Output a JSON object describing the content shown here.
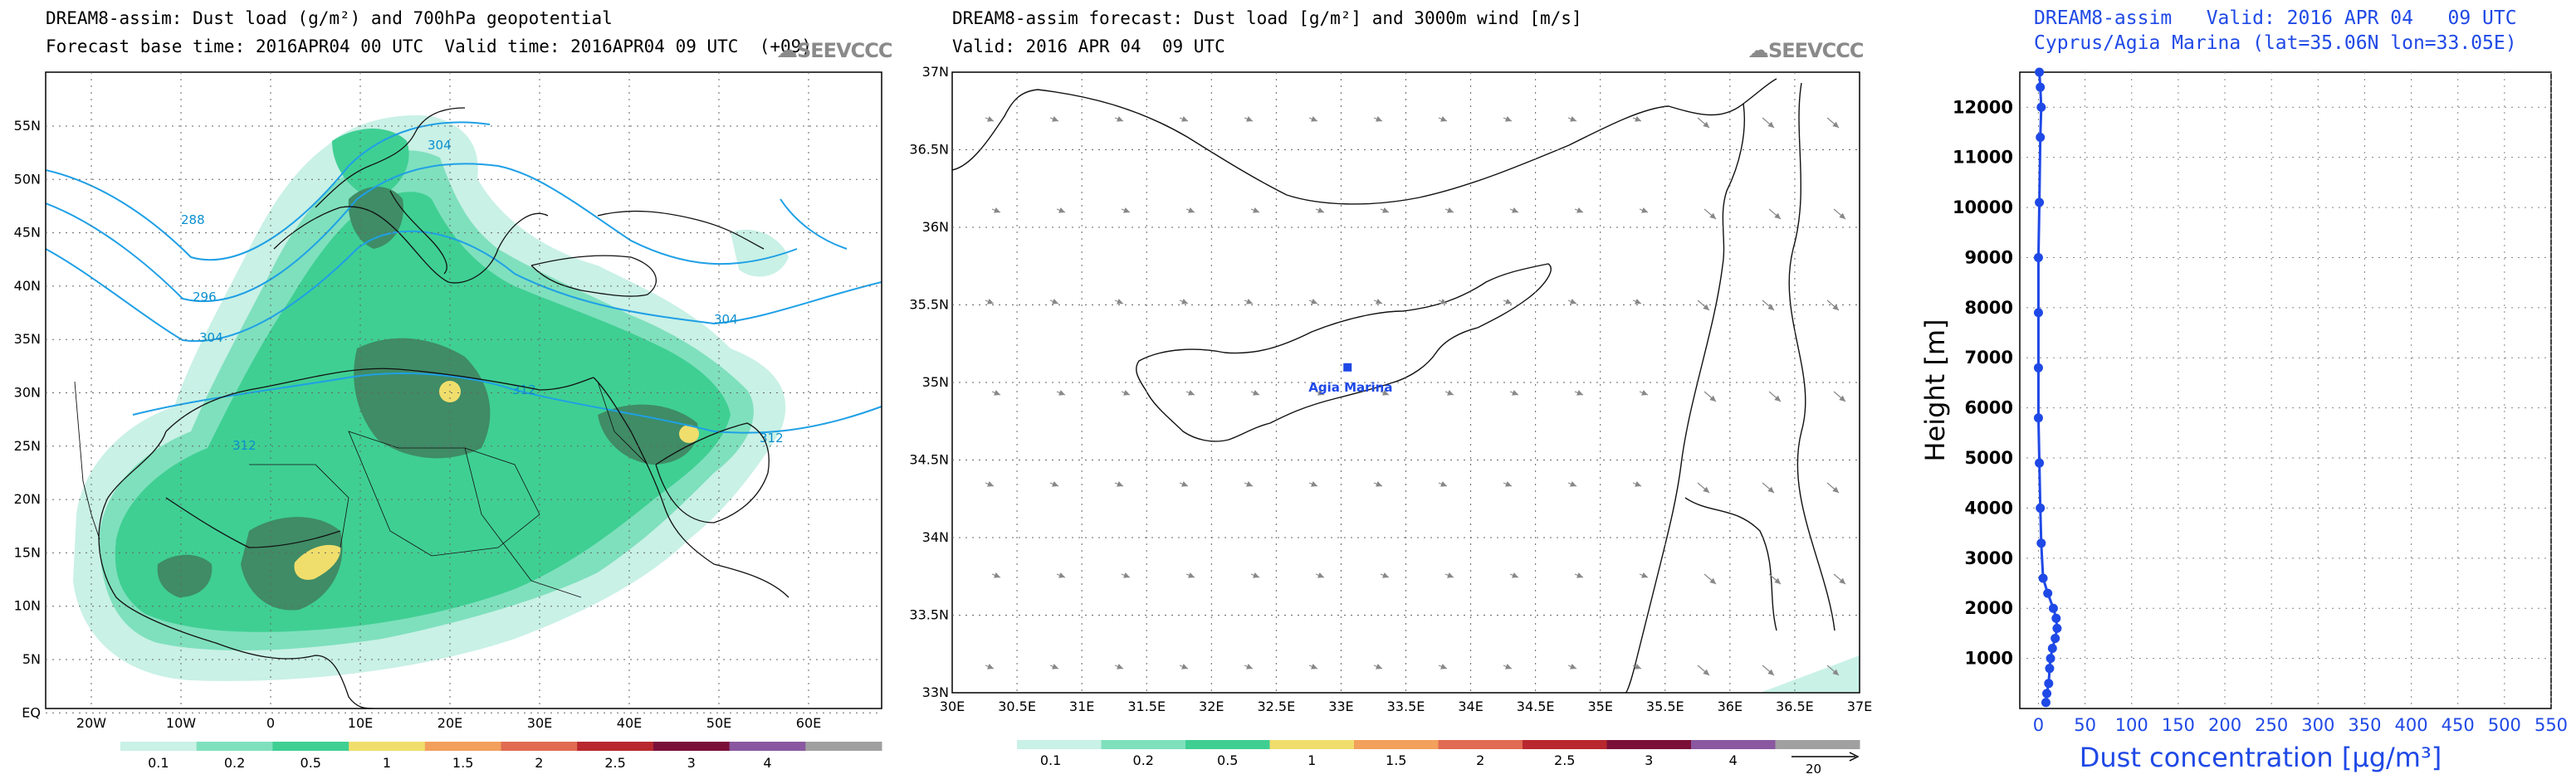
{
  "panel1": {
    "title_line1": "DREAM8-assim: Dust load (g/m²) and 700hPa geopotential",
    "title_line2": "Forecast base time: 2016APR04 00 UTC  Valid time: 2016APR04 09 UTC  (+09)",
    "logo": "SEEVCCC",
    "lon_labels": [
      "20W",
      "10W",
      "0",
      "10E",
      "20E",
      "30E",
      "40E",
      "50E",
      "60E"
    ],
    "lat_labels": [
      "55N",
      "50N",
      "45N",
      "40N",
      "35N",
      "30N",
      "25N",
      "20N",
      "15N",
      "10N",
      "5N",
      "EQ"
    ],
    "contour_labels": [
      "288",
      "296",
      "304",
      "304",
      "304",
      "312",
      "312",
      "312"
    ],
    "colorbar_labels": [
      "0.1",
      "0.2",
      "0.5",
      "1",
      "1.5",
      "2",
      "2.5",
      "3",
      "4"
    ]
  },
  "panel2": {
    "title_line1": "DREAM8-assim forecast: Dust load [g/m²] and 3000m wind [m/s]",
    "title_line2": "Valid: 2016 APR 04  09 UTC",
    "logo": "SEEVCCC",
    "lon_labels": [
      "30E",
      "30.5E",
      "31E",
      "31.5E",
      "32E",
      "32.5E",
      "33E",
      "33.5E",
      "34E",
      "34.5E",
      "35E",
      "35.5E",
      "36E",
      "36.5E",
      "37E"
    ],
    "lat_labels": [
      "37N",
      "36.5N",
      "36N",
      "35.5N",
      "35N",
      "34.5N",
      "34N",
      "33.5N",
      "33N"
    ],
    "station": "Agia  Marina",
    "colorbar_labels": [
      "0.1",
      "0.2",
      "0.5",
      "1",
      "1.5",
      "2",
      "2.5",
      "3",
      "4"
    ],
    "wind_ref": "20"
  },
  "panel3": {
    "title_line1": "DREAM8-assim   Valid: 2016 APR 04   09 UTC",
    "title_line2": "Cyprus/Agia Marina (lat=35.06N lon=33.05E)"
  },
  "colors": {
    "c01": "#c9f1e6",
    "c02": "#7fe0bd",
    "c05": "#3fcf93",
    "dark": "#3f8c66",
    "c1": "#f0de6c",
    "c15": "#f2a05c",
    "c2": "#e06b52",
    "c25": "#b8282e",
    "c3": "#7a1038",
    "c4": "#8a58a0",
    "c5": "#a0a0a0",
    "contour": "#1fa0e6",
    "profile": "#1f49e6"
  },
  "chart_data": [
    {
      "type": "heatmap",
      "title": "DREAM8-assim: Dust load (g/m²) and 700hPa geopotential",
      "subtitle": "Forecast base time: 2016APR04 00 UTC  Valid time: 2016APR04 09 UTC  (+09)",
      "x_ticks": [
        "20W",
        "10W",
        "0",
        "10E",
        "20E",
        "30E",
        "40E",
        "50E",
        "60E"
      ],
      "y_ticks": [
        "55N",
        "50N",
        "45N",
        "40N",
        "35N",
        "30N",
        "25N",
        "20N",
        "15N",
        "10N",
        "5N",
        "EQ"
      ],
      "legend_levels": [
        0.1,
        0.2,
        0.5,
        1,
        1.5,
        2,
        2.5,
        3,
        4
      ],
      "contour_values": [
        288,
        296,
        304,
        312
      ]
    },
    {
      "type": "heatmap",
      "title": "DREAM8-assim forecast: Dust load [g/m²] and 3000m wind [m/s]",
      "subtitle": "Valid: 2016 APR 04  09 UTC",
      "xlim": [
        30,
        37
      ],
      "ylim": [
        33,
        37
      ],
      "station": {
        "name": "Agia  Marina",
        "lat": 35.06,
        "lon": 33.05
      },
      "legend_levels": [
        0.1,
        0.2,
        0.5,
        1,
        1.5,
        2,
        2.5,
        3,
        4
      ],
      "wind_reference": 20
    },
    {
      "type": "line",
      "title": "DREAM8-assim   Valid: 2016 APR 04   09 UTC",
      "subtitle": "Cyprus/Agia Marina (lat=35.06N lon=33.05E)",
      "xlabel": "Dust concentration [µg/m³]",
      "ylabel": "Height [m]",
      "xlim": [
        0,
        550
      ],
      "ylim": [
        0,
        12700
      ],
      "x_ticks": [
        0,
        50,
        100,
        150,
        200,
        250,
        300,
        350,
        400,
        450,
        500,
        550
      ],
      "y_ticks": [
        1000,
        2000,
        3000,
        4000,
        5000,
        6000,
        7000,
        8000,
        9000,
        10000,
        11000,
        12000
      ],
      "series": [
        {
          "x": [
            8,
            9,
            11,
            12,
            13,
            15,
            18,
            20,
            19,
            16,
            10,
            5,
            3,
            2,
            1,
            0,
            0,
            0,
            0,
            1,
            2,
            3,
            2,
            1
          ],
          "y": [
            120,
            300,
            500,
            800,
            1000,
            1200,
            1400,
            1600,
            1800,
            2000,
            2300,
            2600,
            3300,
            4000,
            4900,
            5800,
            6800,
            7900,
            9000,
            10100,
            11400,
            12000,
            12400,
            12700
          ]
        }
      ]
    }
  ]
}
